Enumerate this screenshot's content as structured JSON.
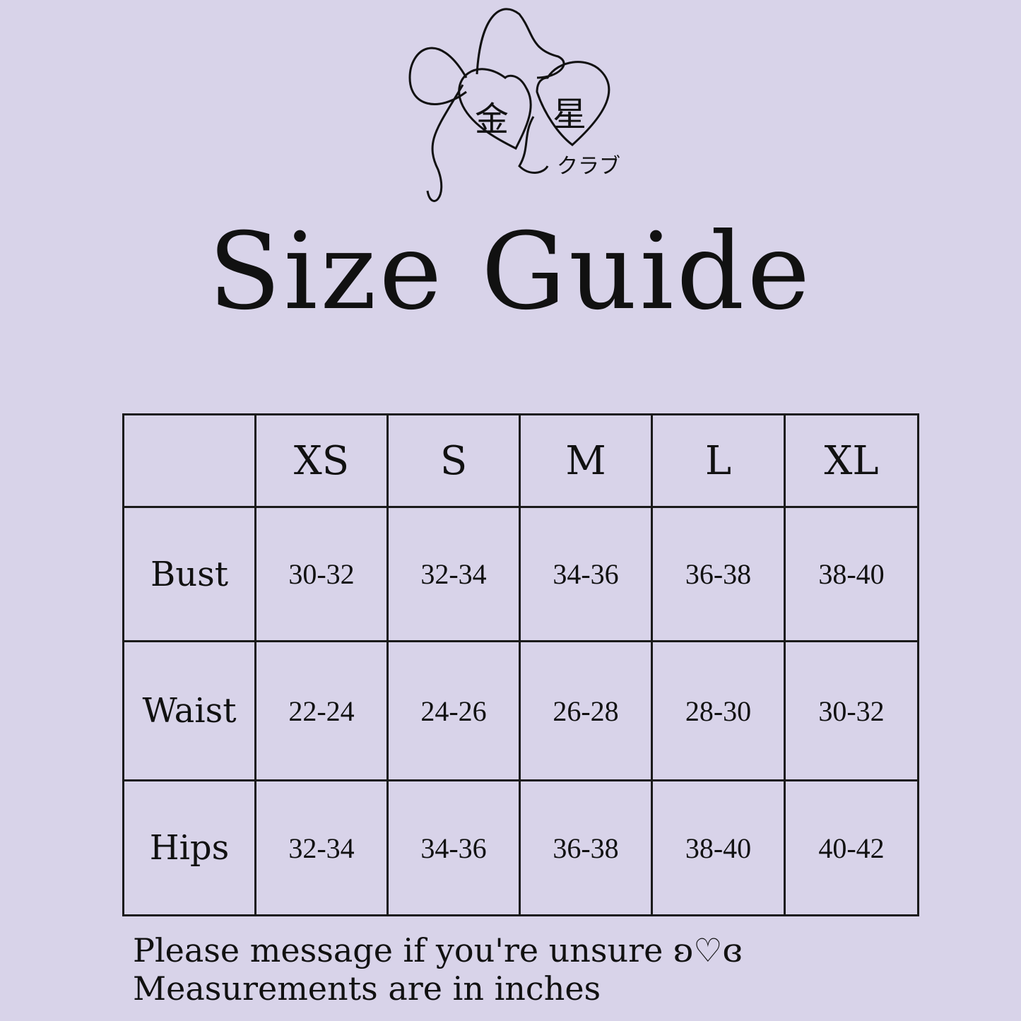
{
  "logo": {
    "heart_left": "金",
    "heart_right": "星",
    "subtitle": "クラブ"
  },
  "title": "Size Guide",
  "table": {
    "columns": [
      "",
      "XS",
      "S",
      "M",
      "L",
      "XL"
    ],
    "rows": [
      {
        "label": "Bust",
        "values": [
          "30-32",
          "32-34",
          "34-36",
          "36-38",
          "38-40"
        ]
      },
      {
        "label": "Waist",
        "values": [
          "22-24",
          "24-26",
          "26-28",
          "28-30",
          "30-32"
        ]
      },
      {
        "label": "Hips",
        "values": [
          "32-34",
          "34-36",
          "36-38",
          "38-40",
          "40-42"
        ]
      }
    ]
  },
  "notes": [
    "Please message if you're unsure ʚ♡ɞ",
    "Measurements are in inches"
  ],
  "colors": {
    "background": "#d8d3e9",
    "ink": "#111111"
  }
}
